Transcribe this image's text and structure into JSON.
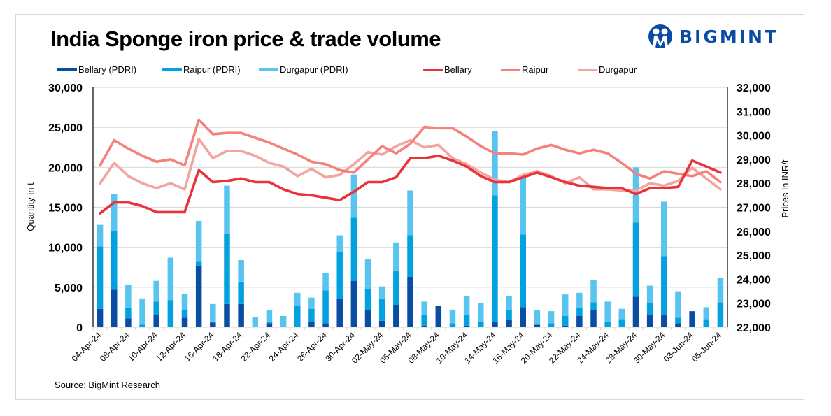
{
  "title": "India Sponge iron price & trade volume",
  "logo": {
    "text": "BIGMINT",
    "color": "#0a4ba8"
  },
  "source": "Source: BigMint Research",
  "legend": [
    {
      "label": "Bellary (PDRI)",
      "color": "#0a4ea3",
      "kind": "bar"
    },
    {
      "label": "Raipur (PDRI)",
      "color": "#04a1e0",
      "kind": "bar"
    },
    {
      "label": "Durgapur (PDRI)",
      "color": "#58c4f0",
      "kind": "bar"
    },
    {
      "label": "Bellary",
      "color": "#e8333a",
      "kind": "line"
    },
    {
      "label": "Raipur",
      "color": "#f4817a",
      "kind": "line"
    },
    {
      "label": "Durgapur",
      "color": "#f3a3a0",
      "kind": "line"
    }
  ],
  "chart_data": {
    "type": "bar",
    "subtype": "stacked-bar-with-lines",
    "title": "India Sponge iron price & trade volume",
    "ylabel": "Quantity in t",
    "y2label": "Prices in INR/t",
    "ylim": [
      0,
      30000
    ],
    "y2lim": [
      22000,
      32000
    ],
    "yticks": [
      "0",
      "5,000",
      "10,000",
      "15,000",
      "20,000",
      "25,000",
      "30,000"
    ],
    "y2ticks": [
      "22,000",
      "23,000",
      "24,000",
      "25,000",
      "26,000",
      "27,000",
      "28,000",
      "29,000",
      "30,000",
      "31,000",
      "32,000"
    ],
    "grid": true,
    "legend_position": "top",
    "x_tick_labels": [
      "04-Apr-24",
      "08-Apr-24",
      "10-Apr-24",
      "12-Apr-24",
      "16-Apr-24",
      "18-Apr-24",
      "22-Apr-24",
      "24-Apr-24",
      "26-Apr-24",
      "30-Apr-24",
      "02-May-24",
      "06-May-24",
      "08-May-24",
      "10-May-24",
      "14-May-24",
      "16-May-24",
      "20-May-24",
      "22-May-24",
      "24-May-24",
      "28-May-24",
      "30-May-24",
      "03-Jun-24",
      "05-Jun-24"
    ],
    "n_categories": 45,
    "label_every": 2,
    "bar_series": [
      {
        "name": "Bellary (PDRI)",
        "color": "#0a4ea3",
        "values": [
          2300,
          4700,
          1100,
          0,
          1500,
          0,
          1200,
          7700,
          600,
          2900,
          2900,
          0,
          500,
          0,
          0,
          700,
          500,
          3500,
          5800,
          2100,
          800,
          2800,
          6300,
          200,
          2700,
          0,
          200,
          0,
          700,
          900,
          2500,
          300,
          0,
          200,
          1400,
          2100,
          0,
          0,
          3800,
          1500,
          1600,
          500,
          2000,
          0,
          0
        ]
      },
      {
        "name": "Raipur (PDRI)",
        "color": "#04a1e0",
        "values": [
          7800,
          7400,
          1300,
          300,
          1700,
          3400,
          900,
          500,
          0,
          8800,
          2800,
          0,
          200,
          0,
          2700,
          1600,
          4100,
          5900,
          7900,
          2700,
          2800,
          4300,
          5200,
          1300,
          0,
          500,
          1400,
          700,
          15800,
          1200,
          9100,
          0,
          500,
          1200,
          1000,
          1000,
          700,
          1000,
          9300,
          1500,
          7300,
          700,
          0,
          1000,
          3100
        ]
      },
      {
        "name": "Durgapur (PDRI)",
        "color": "#58c4f0",
        "values": [
          2700,
          4600,
          2900,
          3300,
          2600,
          5300,
          2100,
          5100,
          2300,
          6000,
          2700,
          1300,
          1400,
          1400,
          1600,
          1400,
          2200,
          2100,
          5400,
          3700,
          1500,
          3500,
          5600,
          1700,
          0,
          1700,
          2300,
          2300,
          8000,
          1800,
          7300,
          1800,
          1500,
          2700,
          1900,
          2800,
          2500,
          1300,
          6900,
          2200,
          6800,
          3300,
          0,
          1500,
          3100
        ]
      }
    ],
    "line_series": [
      {
        "name": "Bellary",
        "color": "#e8333a",
        "axis": "right",
        "values": [
          26750,
          27200,
          27200,
          27050,
          26800,
          26800,
          26800,
          28550,
          28050,
          28100,
          28200,
          28050,
          28050,
          27750,
          27550,
          27500,
          27400,
          27300,
          27650,
          28050,
          28050,
          28250,
          29050,
          29050,
          29150,
          28950,
          28700,
          28300,
          28050,
          28050,
          28250,
          28450,
          28250,
          28050,
          27900,
          27850,
          27800,
          27800,
          27550,
          27800,
          27800,
          27850,
          28950,
          28700,
          28450
        ]
      },
      {
        "name": "Raipur",
        "color": "#f4817a",
        "axis": "right",
        "values": [
          28750,
          29800,
          29450,
          29150,
          28900,
          29000,
          28750,
          30650,
          30050,
          30100,
          30100,
          29900,
          29700,
          29450,
          29200,
          28900,
          28800,
          28550,
          28450,
          29000,
          29550,
          29250,
          29650,
          30350,
          30300,
          30300,
          29950,
          29550,
          29250,
          29250,
          29200,
          29450,
          29600,
          29400,
          29250,
          29400,
          29250,
          28850,
          28400,
          28200,
          28500,
          28400,
          28300,
          28500,
          28050
        ]
      },
      {
        "name": "Durgapur",
        "color": "#f3a3a0",
        "axis": "right",
        "values": [
          28000,
          28850,
          28300,
          28000,
          27800,
          28000,
          27750,
          29850,
          29050,
          29350,
          29350,
          29150,
          28850,
          28700,
          28300,
          28600,
          28250,
          28350,
          28800,
          29300,
          29200,
          29550,
          29800,
          29500,
          29600,
          29050,
          28800,
          28450,
          28150,
          28050,
          28350,
          28500,
          28300,
          28000,
          28250,
          27750,
          27750,
          27700,
          27700,
          28000,
          27900,
          28100,
          28650,
          28200,
          27750
        ]
      }
    ]
  }
}
